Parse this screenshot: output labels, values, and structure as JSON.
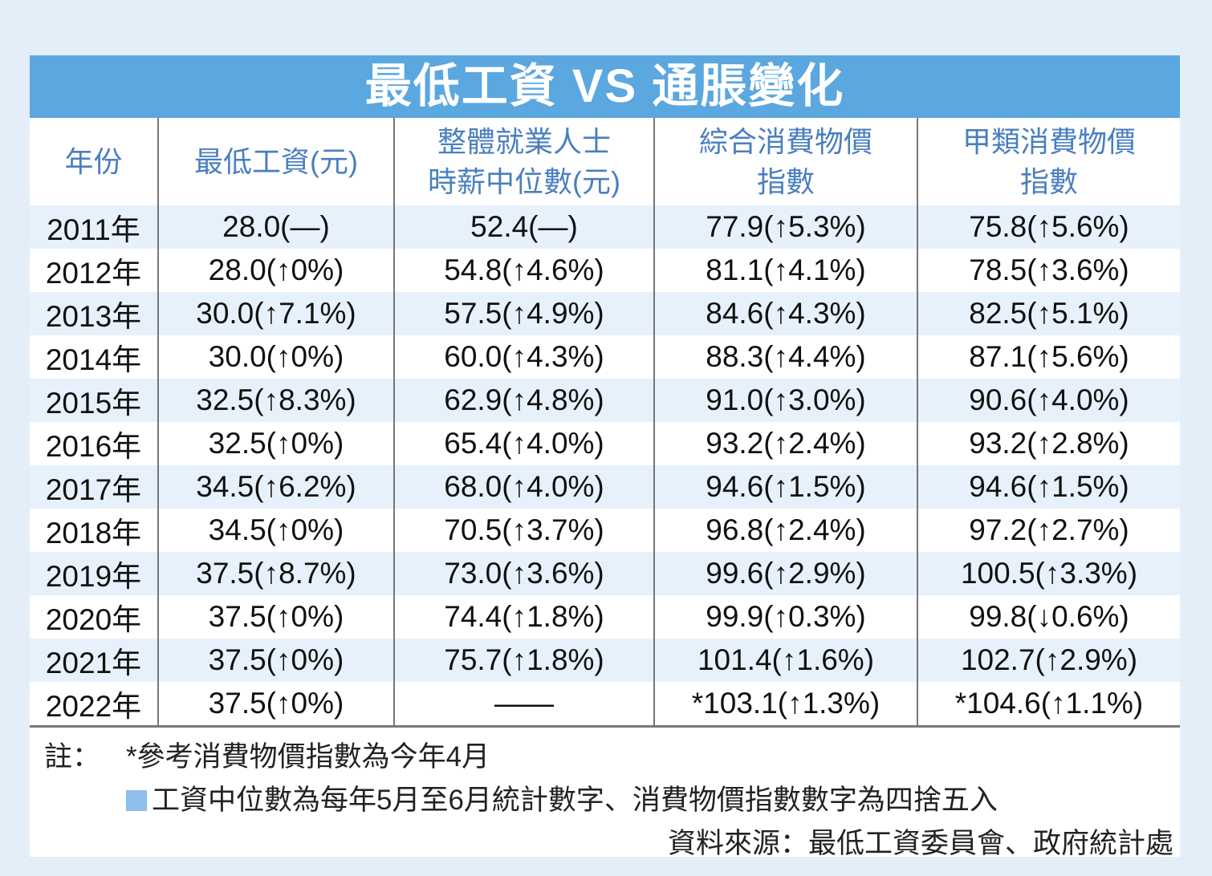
{
  "chart_data": {
    "type": "table",
    "title": "最低工資 VS 通脹變化",
    "columns": [
      "年份",
      "最低工資(元)",
      "整體就業人士\n時薪中位數(元)",
      "綜合消費物價\n指數",
      "甲類消費物價\n指數"
    ],
    "rows": [
      [
        "2011年",
        "28.0(—)",
        "52.4(—)",
        "77.9(↑5.3%)",
        "75.8(↑5.6%)"
      ],
      [
        "2012年",
        "28.0(↑0%)",
        "54.8(↑4.6%)",
        "81.1(↑4.1%)",
        "78.5(↑3.6%)"
      ],
      [
        "2013年",
        "30.0(↑7.1%)",
        "57.5(↑4.9%)",
        "84.6(↑4.3%)",
        "82.5(↑5.1%)"
      ],
      [
        "2014年",
        "30.0(↑0%)",
        "60.0(↑4.3%)",
        "88.3(↑4.4%)",
        "87.1(↑5.6%)"
      ],
      [
        "2015年",
        "32.5(↑8.3%)",
        "62.9(↑4.8%)",
        "91.0(↑3.0%)",
        "90.6(↑4.0%)"
      ],
      [
        "2016年",
        "32.5(↑0%)",
        "65.4(↑4.0%)",
        "93.2(↑2.4%)",
        "93.2(↑2.8%)"
      ],
      [
        "2017年",
        "34.5(↑6.2%)",
        "68.0(↑4.0%)",
        "94.6(↑1.5%)",
        "94.6(↑1.5%)"
      ],
      [
        "2018年",
        "34.5(↑0%)",
        "70.5(↑3.7%)",
        "96.8(↑2.4%)",
        "97.2(↑2.7%)"
      ],
      [
        "2019年",
        "37.5(↑8.7%)",
        "73.0(↑3.6%)",
        "99.6(↑2.9%)",
        "100.5(↑3.3%)"
      ],
      [
        "2020年",
        "37.5(↑0%)",
        "74.4(↑1.8%)",
        "99.9(↑0.3%)",
        "99.8(↓0.6%)"
      ],
      [
        "2021年",
        "37.5(↑0%)",
        "75.7(↑1.8%)",
        "101.4(↑1.6%)",
        "102.7(↑2.9%)"
      ],
      [
        "2022年",
        "37.5(↑0%)",
        "——",
        "*103.1(↑1.3%)",
        "*104.6(↑1.1%)"
      ]
    ]
  },
  "notes": {
    "label": "註：",
    "note1": "*參考消費物價指數為今年4月",
    "note2": "工資中位數為每年5月至6月統計數字、消費物價指數數字為四捨五入",
    "source": "資料來源：最低工資委員會、政府統計處"
  },
  "colors": {
    "title_bg": "#5ba7e0",
    "header_text": "#4a7fbf",
    "alt_row": "#e7f1fb",
    "page_bg": "#e4eef8"
  }
}
